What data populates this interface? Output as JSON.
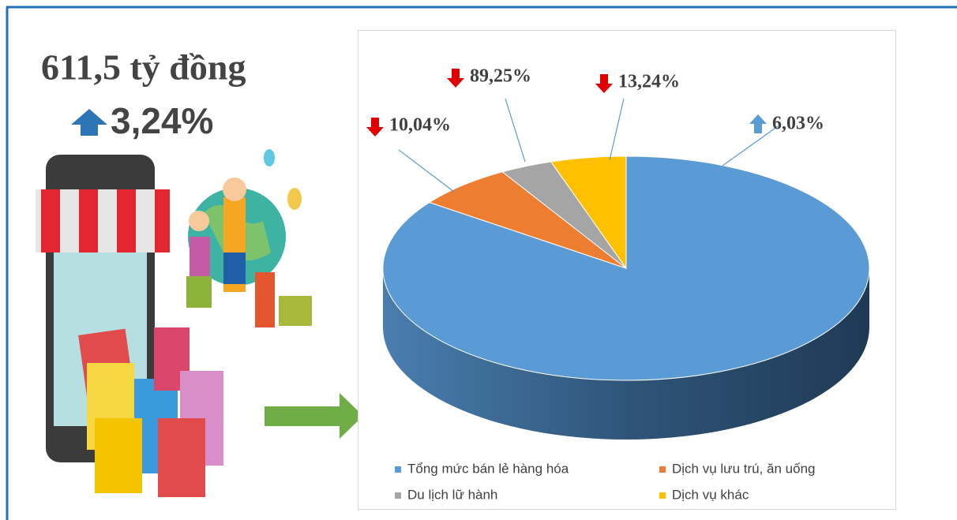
{
  "headline": {
    "amount": "611,5 tỷ đồng",
    "change": "3,24%"
  },
  "chart_data": {
    "type": "pie",
    "categories": [
      "Tổng mức bán lẻ hàng hóa",
      "Dịch vụ lưu trú, ăn uống",
      "Du lịch lữ hành",
      "Dịch vụ khác"
    ],
    "values": [
      85,
      6.5,
      3.5,
      5
    ],
    "colors": [
      "#5b9bd5",
      "#ed7d31",
      "#a5a5a5",
      "#ffc000"
    ],
    "change_labels": [
      "6,03%",
      "10,04%",
      "89,25%",
      "13,24%"
    ],
    "change_directions": [
      "up",
      "down",
      "down",
      "down"
    ],
    "legend": "bottom"
  }
}
